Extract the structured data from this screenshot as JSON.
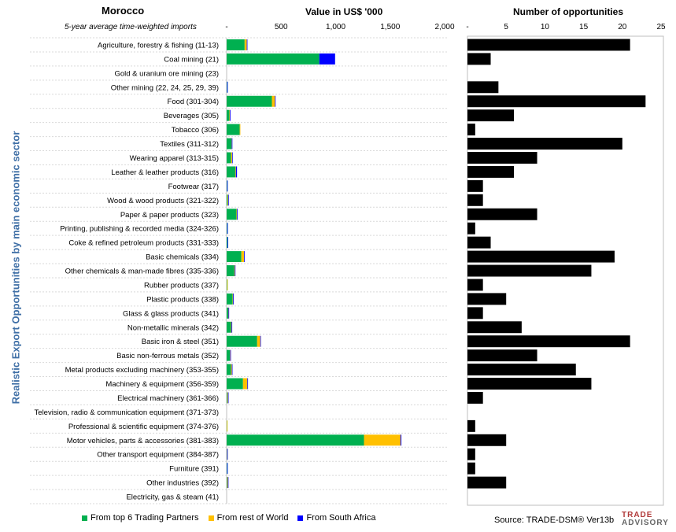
{
  "header": {
    "country": "Morocco",
    "subtitle": "5-year average time-weighted imports",
    "left_title": "Value in US$ '000",
    "right_title": "Number of opportunities",
    "y_axis_label": "Realistic Export Opportunities by main economic sector"
  },
  "legend": [
    {
      "label": "From top 6 Trading Partners",
      "color": "#00b050"
    },
    {
      "label": "From rest of World",
      "color": "#ffc000"
    },
    {
      "label": "From South Africa",
      "color": "#0000ff"
    }
  ],
  "source": "Source: TRADE-DSM®  Ver13b",
  "logo": {
    "line1": "TRADE",
    "line2": "ADVISORY"
  },
  "chart_data": [
    {
      "type": "bar",
      "orientation": "horizontal",
      "stacked": true,
      "title": "Value in US$ '000",
      "xlim": [
        0,
        2000
      ],
      "xticks": [
        "-",
        "500",
        "1,000",
        "1,500",
        "2,000"
      ],
      "categories": [
        "Agriculture, forestry & fishing (11-13)",
        "Coal mining (21)",
        "Gold & uranium ore mining (23)",
        "Other mining (22, 24, 25, 29, 39)",
        "Food (301-304)",
        "Beverages (305)",
        "Tobacco (306)",
        "Textiles (311-312)",
        "Wearing apparel (313-315)",
        "Leather & leather products (316)",
        "Footwear (317)",
        "Wood & wood products (321-322)",
        "Paper & paper products (323)",
        "Printing, publishing & recorded media (324-326)",
        "Coke & refined petroleum products (331-333)",
        "Basic chemicals (334)",
        "Other chemicals & man-made fibres (335-336)",
        "Rubber products (337)",
        "Plastic products (338)",
        "Glass & glass products (341)",
        "Non-metallic minerals (342)",
        "Basic iron & steel (351)",
        "Basic non-ferrous metals (352)",
        "Metal products excluding machinery (353-355)",
        "Machinery & equipment (356-359)",
        "Electrical machinery (361-366)",
        "Television, radio & communication equipment (371-373)",
        "Professional & scientific equipment (374-376)",
        "Motor vehicles, parts & accessories (381-383)",
        "Other transport equipment (384-387)",
        "Furniture (391)",
        "Other industries (392)",
        "Electricity, gas & steam (41)"
      ],
      "series": [
        {
          "name": "From top 6 Trading Partners",
          "color": "#00b050",
          "values": [
            165,
            850,
            0,
            4,
            415,
            25,
            120,
            45,
            40,
            80,
            4,
            8,
            90,
            5,
            8,
            135,
            70,
            4,
            55,
            15,
            40,
            280,
            30,
            40,
            150,
            6,
            0,
            2,
            1260,
            2,
            4,
            5,
            0
          ]
        },
        {
          "name": "From rest of World",
          "color": "#ffc000",
          "values": [
            20,
            0,
            0,
            0,
            28,
            5,
            5,
            2,
            10,
            5,
            0,
            6,
            5,
            0,
            0,
            25,
            5,
            4,
            4,
            2,
            5,
            28,
            3,
            8,
            40,
            6,
            0,
            2,
            335,
            2,
            0,
            6,
            0
          ]
        },
        {
          "name": "From South Africa",
          "color": "#0000ff",
          "values": [
            2,
            145,
            0,
            6,
            5,
            4,
            0,
            5,
            3,
            10,
            3,
            3,
            3,
            2,
            6,
            4,
            3,
            0,
            3,
            5,
            6,
            5,
            6,
            3,
            5,
            2,
            0,
            0,
            8,
            3,
            5,
            2,
            0
          ]
        }
      ]
    },
    {
      "type": "bar",
      "orientation": "horizontal",
      "title": "Number of opportunities",
      "xlim": [
        0,
        25
      ],
      "xticks": [
        "-",
        "5",
        "10",
        "15",
        "20",
        "25"
      ],
      "categories_shared": true,
      "series": [
        {
          "color": "#000000",
          "values": [
            21,
            3,
            0,
            4,
            23,
            6,
            1,
            20,
            9,
            6,
            2,
            2,
            9,
            1,
            3,
            19,
            16,
            2,
            5,
            2,
            7,
            21,
            9,
            14,
            16,
            2,
            0,
            1,
            5,
            1,
            1,
            5,
            0
          ]
        }
      ]
    }
  ]
}
